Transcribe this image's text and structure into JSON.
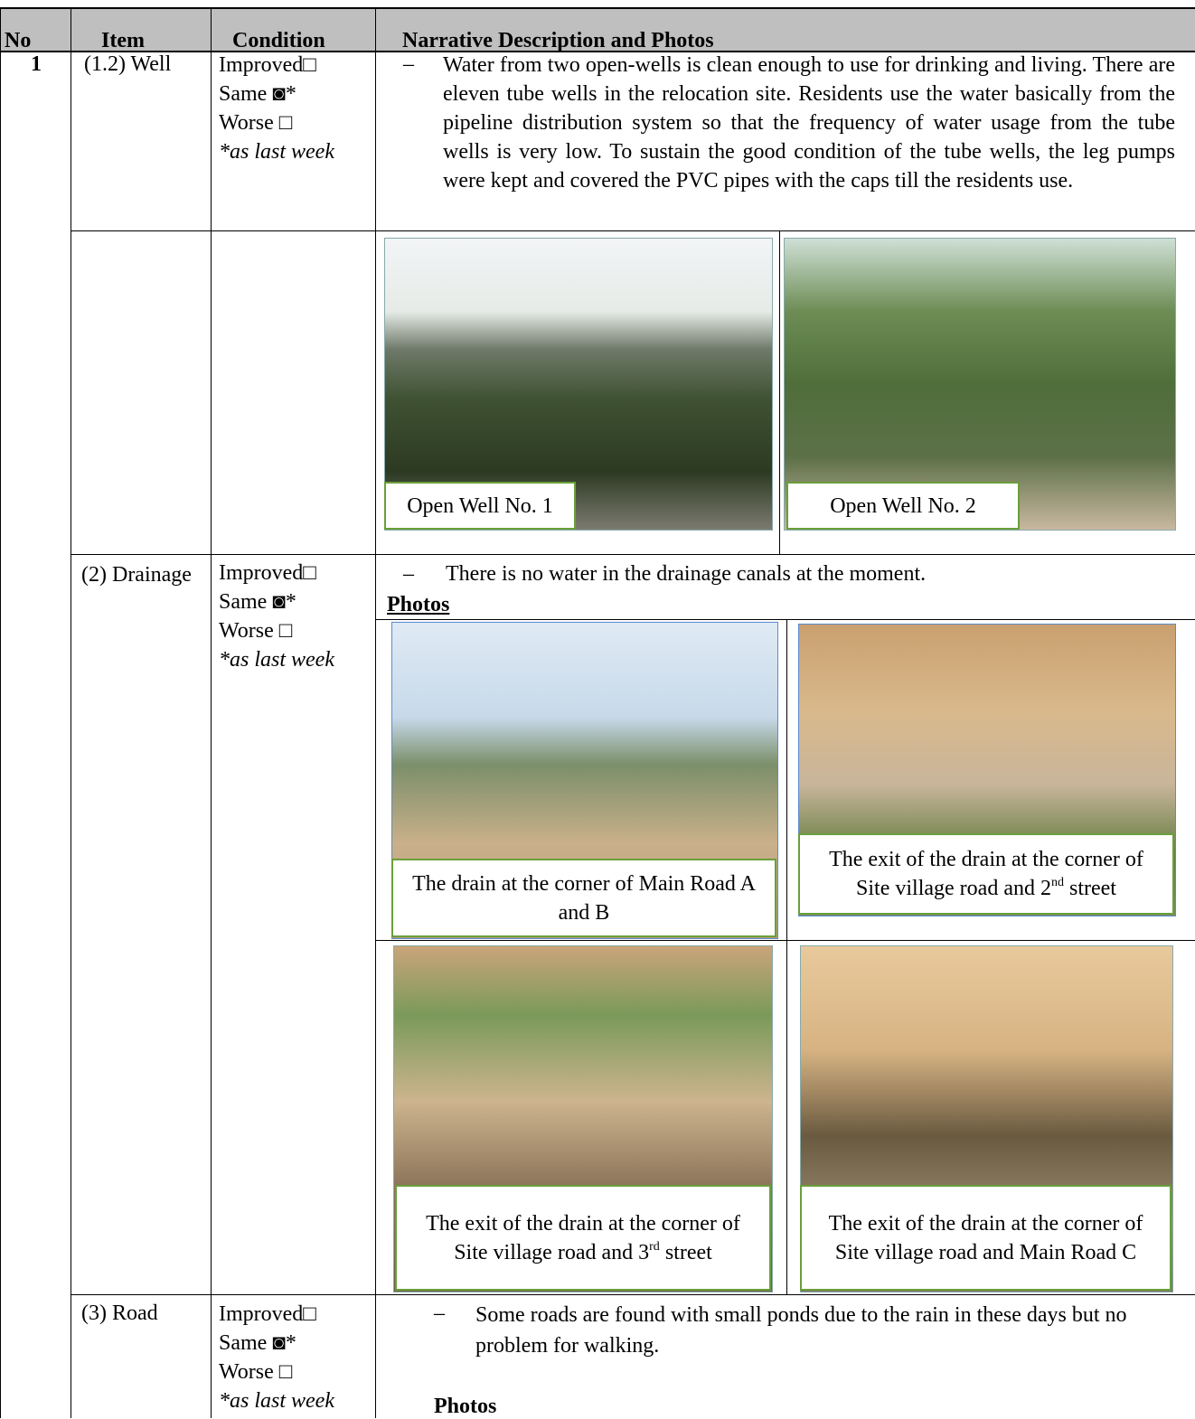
{
  "table": {
    "headers": [
      "No",
      "Item",
      "Condition",
      "Narrative Description and Photos"
    ],
    "rows": [
      {
        "no": "1",
        "item": "(1.2) Well",
        "condition": [
          "Improved□",
          "Same ◙*",
          "Worse □",
          "*as last week"
        ],
        "bullet": "–",
        "narrative": "Water from two open-wells is clean enough to use for drinking and living. There are eleven tube wells in the relocation site. Residents use the water basically from the pipeline distribution system so that the frequency of water usage from the tube wells is very low. To sustain the good condition of the tube wells, the leg pumps were kept and covered the PVC pipes with the caps till the residents use.",
        "photos": [
          "Open Well No. 1",
          "Open Well No. 2"
        ]
      },
      {
        "item": "(2) Drainage",
        "condition": [
          "Improved□",
          "Same ◙*",
          "Worse □",
          "*as last week"
        ],
        "bullet": "–",
        "narrative": "There is no water in the drainage canals at the moment.",
        "photos_heading": "Photos",
        "photos": [
          {
            "text": "The drain at the corner of Main Road A and B"
          },
          {
            "text": "The exit of the drain at the corner of Site village road and 2",
            "sup": "nd",
            "tail": " street"
          },
          {
            "text": "The exit of the drain at the corner of Site village road and 3",
            "sup": "rd",
            "tail": " street"
          },
          {
            "text": "The exit of the drain at the corner of Site village road and Main Road C"
          }
        ]
      },
      {
        "item": "(3) Road",
        "condition": [
          "Improved□",
          "Same ◙*",
          "Worse □",
          "*as last week"
        ],
        "bullet": "–",
        "narrative": "Some roads are found with small ponds due to the rain in these days but no problem for walking.",
        "photos_heading": "Photos"
      }
    ]
  }
}
